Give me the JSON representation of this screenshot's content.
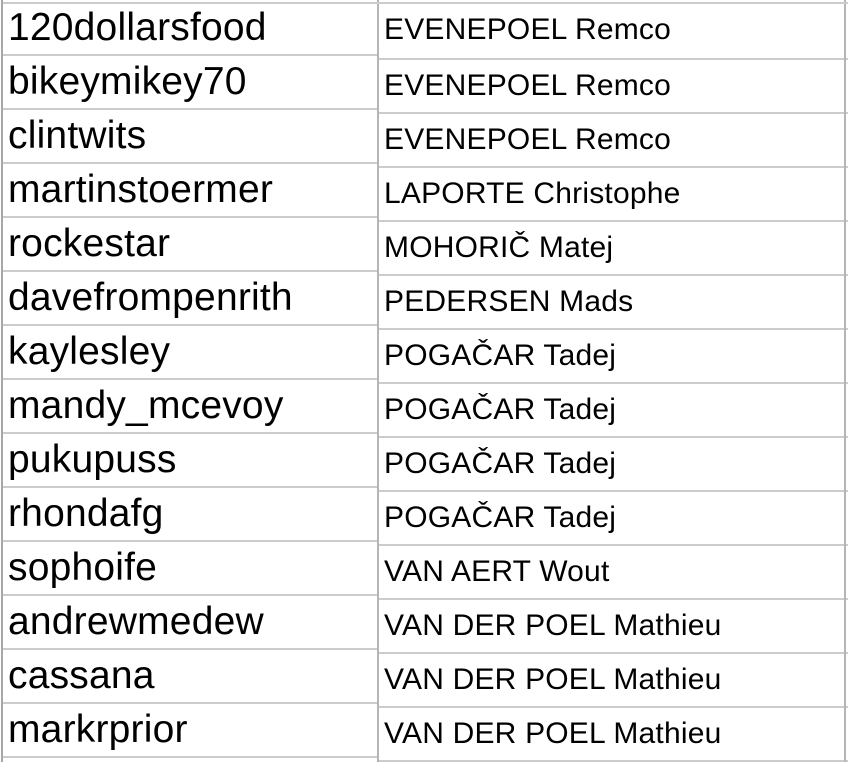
{
  "table": {
    "description": "spreadsheet-grid",
    "columns": [
      {
        "id": "username",
        "role": "player username"
      },
      {
        "id": "rider",
        "role": "selected rider"
      }
    ],
    "rows": [
      {
        "username": "120dollarsfood",
        "rider": "EVENEPOEL Remco"
      },
      {
        "username": "bikeymikey70",
        "rider": "EVENEPOEL Remco"
      },
      {
        "username": "clintwits",
        "rider": "EVENEPOEL Remco"
      },
      {
        "username": "martinstoermer",
        "rider": "LAPORTE Christophe"
      },
      {
        "username": "rockestar",
        "rider": "MOHORIČ Matej"
      },
      {
        "username": "davefrompenrith",
        "rider": "PEDERSEN Mads"
      },
      {
        "username": "kaylesley",
        "rider": "POGAČAR Tadej"
      },
      {
        "username": "mandy_mcevoy",
        "rider": "POGAČAR Tadej"
      },
      {
        "username": "pukupuss",
        "rider": "POGAČAR Tadej"
      },
      {
        "username": "rhondafg",
        "rider": "POGAČAR Tadej"
      },
      {
        "username": "sophoife",
        "rider": "VAN AERT Wout"
      },
      {
        "username": "andrewmedew",
        "rider": "VAN DER POEL Mathieu"
      },
      {
        "username": "cassana",
        "rider": "VAN DER POEL Mathieu"
      },
      {
        "username": "markrprior",
        "rider": "VAN DER POEL Mathieu"
      }
    ]
  },
  "colors": {
    "background": "#ffffff",
    "text": "#000000",
    "gridline_horizontal": "#cccccc",
    "gridline_vertical": "#b3b6b9",
    "left_edge_line": "#a6a6a6"
  }
}
